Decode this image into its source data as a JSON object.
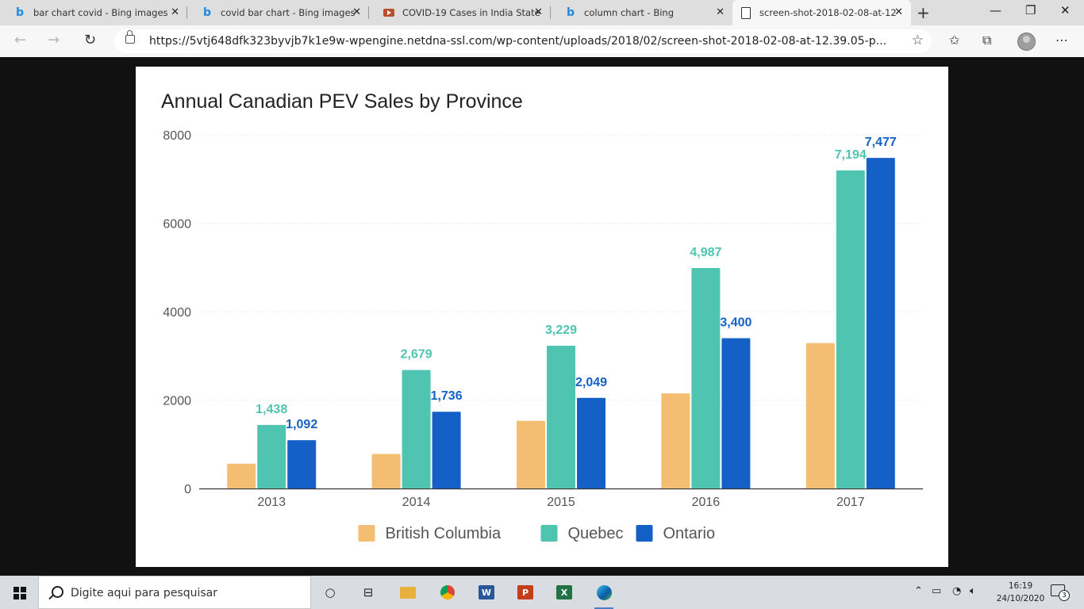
{
  "browser": {
    "tabs": [
      {
        "label": "bar chart covid - Bing images",
        "icon": "bing-icon",
        "active": false
      },
      {
        "label": "covid bar chart - Bing images",
        "icon": "bing-icon",
        "active": false
      },
      {
        "label": "COVID-19 Cases in India State",
        "icon": "youtube-icon",
        "active": false
      },
      {
        "label": "column chart - Bing",
        "icon": "bing-icon",
        "active": false
      },
      {
        "label": "screen-shot-2018-02-08-at-12",
        "icon": "document-icon",
        "active": true
      }
    ],
    "url": "https://5vtj648dfk323byvjb7k1e9w-wpengine.netdna-ssl.com/wp-content/uploads/2018/02/screen-shot-2018-02-08-at-12.39.05-p..."
  },
  "chart_data": {
    "type": "bar",
    "title": "Annual Canadian PEV Sales by Province",
    "categories": [
      "2013",
      "2014",
      "2015",
      "2016",
      "2017"
    ],
    "series": [
      {
        "name": "British Columbia",
        "color": "#f3bd72",
        "values": [
          560,
          780,
          1530,
          2150,
          3290
        ],
        "labels": [
          "",
          "",
          "",
          "",
          ""
        ]
      },
      {
        "name": "Quebec",
        "color": "#4fc4b0",
        "values": [
          1438,
          2679,
          3229,
          4987,
          7194
        ],
        "labels": [
          "1,438",
          "2,679",
          "3,229",
          "4,987",
          "7,194"
        ]
      },
      {
        "name": "Ontario",
        "color": "#1560c7",
        "values": [
          1092,
          1736,
          2049,
          3400,
          7477
        ],
        "labels": [
          "1,092",
          "1,736",
          "2,049",
          "3,400",
          "7,477"
        ]
      }
    ],
    "yticks": [
      "0",
      "2000",
      "4000",
      "6000",
      "8000"
    ],
    "ylim": [
      0,
      8000
    ],
    "grid": true,
    "legend": "bottom"
  },
  "taskbar": {
    "search_placeholder": "Digite aqui para pesquisar",
    "time": "16:19",
    "date": "24/10/2020",
    "notification_count": "3"
  }
}
